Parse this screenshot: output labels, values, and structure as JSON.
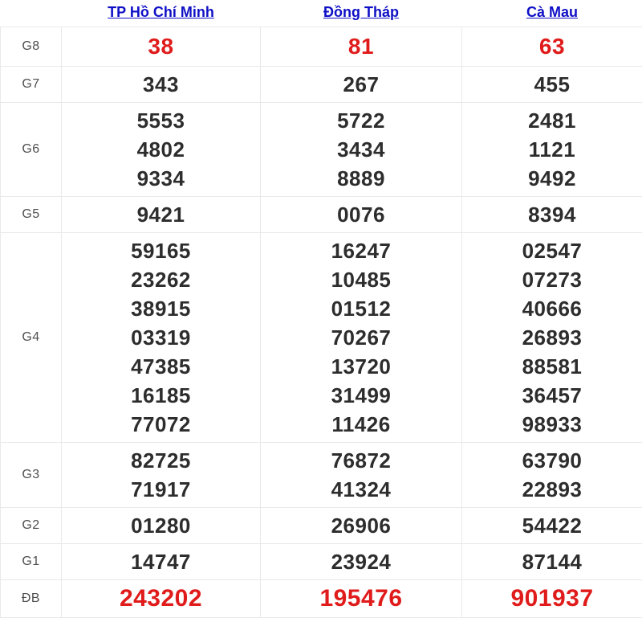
{
  "colors": {
    "link_blue": "#0f0fc6",
    "number_dark": "#2d2d2d",
    "highlight_red": "#e01b1b",
    "border_gray": "#e9e9e9",
    "label_gray": "#4f4f4f",
    "background": "#ffffff"
  },
  "header": {
    "columns": [
      {
        "label": "TP Hồ Chí Minh"
      },
      {
        "label": "Đồng Tháp"
      },
      {
        "label": "Cà Mau"
      }
    ]
  },
  "prizes": [
    {
      "label": "G8",
      "values": [
        [
          "38"
        ],
        [
          "81"
        ],
        [
          "63"
        ]
      ]
    },
    {
      "label": "G7",
      "values": [
        [
          "343"
        ],
        [
          "267"
        ],
        [
          "455"
        ]
      ]
    },
    {
      "label": "G6",
      "values": [
        [
          "5553",
          "4802",
          "9334"
        ],
        [
          "5722",
          "3434",
          "8889"
        ],
        [
          "2481",
          "1121",
          "9492"
        ]
      ]
    },
    {
      "label": "G5",
      "values": [
        [
          "9421"
        ],
        [
          "0076"
        ],
        [
          "8394"
        ]
      ]
    },
    {
      "label": "G4",
      "values": [
        [
          "59165",
          "23262",
          "38915",
          "03319",
          "47385",
          "16185",
          "77072"
        ],
        [
          "16247",
          "10485",
          "01512",
          "70267",
          "13720",
          "31499",
          "11426"
        ],
        [
          "02547",
          "07273",
          "40666",
          "26893",
          "88581",
          "36457",
          "98933"
        ]
      ]
    },
    {
      "label": "G3",
      "values": [
        [
          "82725",
          "71917"
        ],
        [
          "76872",
          "41324"
        ],
        [
          "63790",
          "22893"
        ]
      ]
    },
    {
      "label": "G2",
      "values": [
        [
          "01280"
        ],
        [
          "26906"
        ],
        [
          "54422"
        ]
      ]
    },
    {
      "label": "G1",
      "values": [
        [
          "14747"
        ],
        [
          "23924"
        ],
        [
          "87144"
        ]
      ]
    },
    {
      "label": "ĐB",
      "values": [
        [
          "243202"
        ],
        [
          "195476"
        ],
        [
          "901937"
        ]
      ]
    }
  ]
}
